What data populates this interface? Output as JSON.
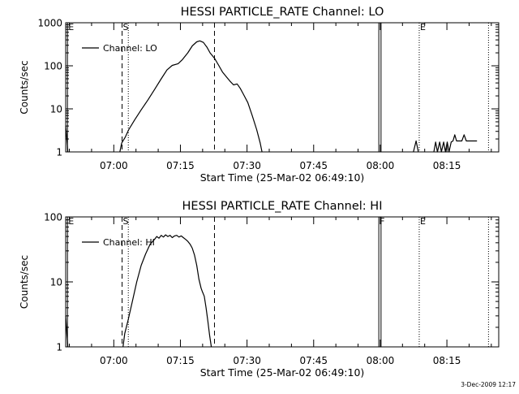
{
  "footer": {
    "timestamp": "3-Dec-2009 12:17"
  },
  "chart_data": [
    {
      "type": "line",
      "title": "HESSI PARTICLE_RATE Channel: LO",
      "xlabel": "Start Time (25-Mar-02 06:49:10)",
      "ylabel": "Counts/sec",
      "x_unit": "minutes after 06:49:10",
      "xlim": [
        0,
        97.5
      ],
      "ylim": [
        1,
        1000
      ],
      "y_scale": "log",
      "grid": false,
      "legend": {
        "label": "Channel: LO",
        "position": "top-left"
      },
      "x_ticks": [
        {
          "label": "07:00",
          "value": 10.83
        },
        {
          "label": "07:15",
          "value": 25.83
        },
        {
          "label": "07:30",
          "value": 40.83
        },
        {
          "label": "07:45",
          "value": 55.83
        },
        {
          "label": "08:00",
          "value": 70.83
        },
        {
          "label": "08:15",
          "value": 85.83
        }
      ],
      "y_ticks": [
        {
          "label": "1",
          "value": 1
        },
        {
          "label": "10",
          "value": 10
        },
        {
          "label": "100",
          "value": 100
        },
        {
          "label": "1000",
          "value": 1000
        }
      ],
      "markers": [
        {
          "label": "E",
          "x": 0.4,
          "style": "solid"
        },
        {
          "label": "S",
          "x": 12.7,
          "style": "dashed"
        },
        {
          "label": "",
          "x": 14.1,
          "style": "dotted"
        },
        {
          "label": "",
          "x": 33.5,
          "style": "dashed"
        },
        {
          "label": "",
          "x": 70.5,
          "style": "solid"
        },
        {
          "label": "",
          "x": 71.0,
          "style": "solid"
        },
        {
          "label": "E",
          "x": 79.6,
          "style": "dotted"
        },
        {
          "label": "",
          "x": 95.2,
          "style": "dotted"
        }
      ],
      "series": [
        {
          "segments": [
            [
              [
                0,
                4
              ],
              [
                0.3,
                1.8
              ],
              [
                0.5,
                1
              ]
            ],
            [
              [
                12.2,
                1
              ],
              [
                12.6,
                1.6
              ],
              [
                13.4,
                2.2
              ],
              [
                14.2,
                3.3
              ],
              [
                15.5,
                5.5
              ],
              [
                17.0,
                9.5
              ],
              [
                18.5,
                16
              ],
              [
                20.0,
                28
              ],
              [
                21.5,
                50
              ],
              [
                22.8,
                80
              ],
              [
                24.0,
                102
              ],
              [
                25.3,
                112
              ],
              [
                26.3,
                140
              ],
              [
                27.5,
                200
              ],
              [
                28.5,
                290
              ],
              [
                29.5,
                360
              ],
              [
                30.2,
                380
              ],
              [
                31.0,
                350
              ],
              [
                31.8,
                270
              ],
              [
                32.5,
                200
              ],
              [
                33.5,
                150
              ],
              [
                34.5,
                100
              ],
              [
                35.3,
                72
              ],
              [
                36.2,
                55
              ],
              [
                37.0,
                44
              ],
              [
                37.8,
                36
              ],
              [
                38.6,
                38
              ],
              [
                39.3,
                30
              ],
              [
                40.0,
                22
              ],
              [
                41.0,
                14
              ],
              [
                42.0,
                7
              ],
              [
                43.0,
                3.3
              ],
              [
                43.8,
                1.6
              ],
              [
                44.2,
                1
              ]
            ],
            [
              [
                78.3,
                1
              ],
              [
                78.9,
                1.8
              ],
              [
                79.4,
                1
              ]
            ],
            [
              [
                82.9,
                1
              ],
              [
                83.3,
                1.7
              ],
              [
                83.7,
                1
              ],
              [
                84.2,
                1.7
              ],
              [
                84.6,
                1
              ],
              [
                85.1,
                1.7
              ],
              [
                85.5,
                1
              ],
              [
                85.9,
                1.7
              ],
              [
                86.3,
                1
              ],
              [
                86.8,
                1.7
              ],
              [
                87.2,
                1.8
              ],
              [
                87.6,
                2.5
              ],
              [
                88.0,
                1.8
              ],
              [
                89.2,
                1.8
              ],
              [
                89.7,
                2.5
              ],
              [
                90.2,
                1.8
              ],
              [
                92.6,
                1.8
              ]
            ]
          ]
        }
      ]
    },
    {
      "type": "line",
      "title": "HESSI PARTICLE_RATE Channel: HI",
      "xlabel": "Start Time (25-Mar-02 06:49:10)",
      "ylabel": "Counts/sec",
      "x_unit": "minutes after 06:49:10",
      "xlim": [
        0,
        97.5
      ],
      "ylim": [
        1,
        100
      ],
      "y_scale": "log",
      "grid": false,
      "legend": {
        "label": "Channel: HI",
        "position": "top-left"
      },
      "x_ticks": [
        {
          "label": "07:00",
          "value": 10.83
        },
        {
          "label": "07:15",
          "value": 25.83
        },
        {
          "label": "07:30",
          "value": 40.83
        },
        {
          "label": "07:45",
          "value": 55.83
        },
        {
          "label": "08:00",
          "value": 70.83
        },
        {
          "label": "08:15",
          "value": 85.83
        }
      ],
      "y_ticks": [
        {
          "label": "1",
          "value": 1
        },
        {
          "label": "10",
          "value": 10
        },
        {
          "label": "100",
          "value": 100
        }
      ],
      "markers": [
        {
          "label": "E",
          "x": 0.4,
          "style": "solid"
        },
        {
          "label": "S",
          "x": 12.7,
          "style": "dashed"
        },
        {
          "label": "",
          "x": 14.1,
          "style": "dotted"
        },
        {
          "label": "",
          "x": 33.5,
          "style": "dashed"
        },
        {
          "label": "F",
          "x": 70.5,
          "style": "solid"
        },
        {
          "label": "",
          "x": 71.0,
          "style": "solid"
        },
        {
          "label": "E",
          "x": 79.6,
          "style": "dotted"
        },
        {
          "label": "",
          "x": 95.2,
          "style": "dotted"
        }
      ],
      "series": [
        {
          "segments": [
            [
              [
                0,
                3
              ],
              [
                0.3,
                1.5
              ],
              [
                0.5,
                1
              ]
            ],
            [
              [
                12.9,
                1
              ],
              [
                13.3,
                1.6
              ],
              [
                14.0,
                2.5
              ],
              [
                15.0,
                5
              ],
              [
                16.0,
                10
              ],
              [
                17.0,
                18
              ],
              [
                18.0,
                27
              ],
              [
                19.0,
                38
              ],
              [
                20.0,
                45
              ],
              [
                20.5,
                50
              ],
              [
                21.0,
                47
              ],
              [
                21.5,
                52
              ],
              [
                22.0,
                49
              ],
              [
                22.5,
                53
              ],
              [
                23.0,
                50
              ],
              [
                23.5,
                52
              ],
              [
                24.0,
                48
              ],
              [
                24.5,
                51
              ],
              [
                25.0,
                52
              ],
              [
                25.5,
                49
              ],
              [
                26.0,
                51
              ],
              [
                26.5,
                48
              ],
              [
                27.0,
                45
              ],
              [
                27.5,
                42
              ],
              [
                28.0,
                38
              ],
              [
                28.5,
                33
              ],
              [
                29.0,
                26
              ],
              [
                29.5,
                18
              ],
              [
                30.0,
                11
              ],
              [
                30.5,
                8
              ],
              [
                30.8,
                7
              ],
              [
                31.2,
                6
              ],
              [
                31.6,
                4
              ],
              [
                32.0,
                2.5
              ],
              [
                32.4,
                1.5
              ],
              [
                32.8,
                1
              ]
            ]
          ]
        }
      ]
    }
  ]
}
